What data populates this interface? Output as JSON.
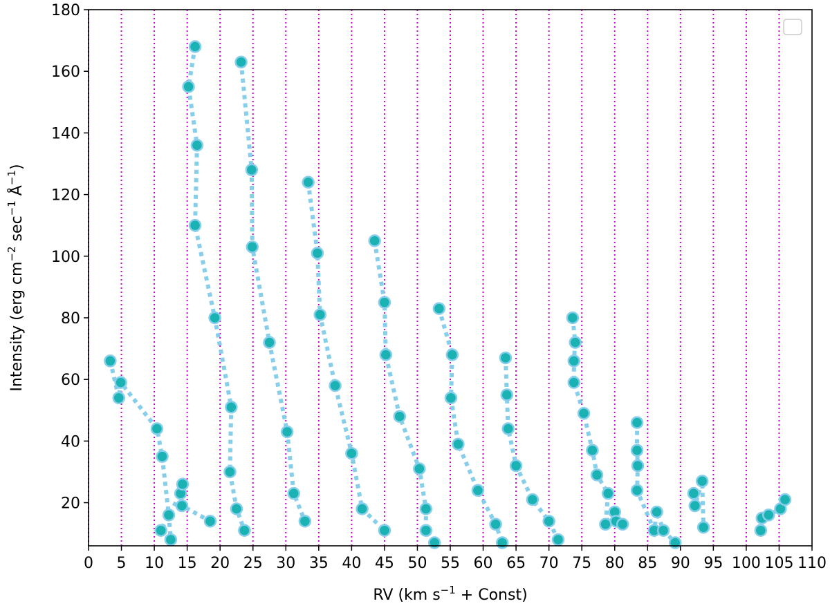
{
  "chart_data": {
    "type": "scatter",
    "xlabel": {
      "pre": "RV (km s",
      "sup": "−1",
      "post": " + Const)"
    },
    "ylabel": {
      "parts": [
        {
          "t": "Intensity (erg cm",
          "sup": false
        },
        {
          "t": "−2",
          "sup": true
        },
        {
          "t": " sec",
          "sup": false
        },
        {
          "t": "−1",
          "sup": true
        },
        {
          "t": " Å",
          "sup": false
        },
        {
          "t": "−1",
          "sup": true
        },
        {
          "t": ")",
          "sup": false
        }
      ]
    },
    "xlim": [
      0,
      110
    ],
    "ylim": [
      6,
      180
    ],
    "x_ticks": [
      0,
      5,
      10,
      15,
      20,
      25,
      30,
      35,
      40,
      45,
      50,
      55,
      60,
      65,
      70,
      75,
      80,
      85,
      90,
      95,
      100,
      105,
      110
    ],
    "x_tick_labels": [
      "0",
      "5",
      "10",
      "15",
      "20",
      "25",
      "30",
      "35",
      "40",
      "45",
      "50",
      "55",
      "60",
      "65",
      "70",
      "75",
      "80",
      "85",
      "90",
      "95",
      "100",
      "105",
      "110"
    ],
    "y_ticks": [
      20,
      40,
      60,
      80,
      100,
      120,
      140,
      160,
      180
    ],
    "y_tick_labels": [
      "20",
      "40",
      "60",
      "80",
      "100",
      "120",
      "140",
      "160",
      "180"
    ],
    "vlines": [
      0,
      5,
      10,
      15,
      20,
      25,
      30,
      35,
      40,
      45,
      50,
      55,
      60,
      65,
      70,
      75,
      80,
      85,
      90,
      95,
      100,
      105
    ],
    "vline_color": "#cc00cc",
    "marker_fill": "#1ab2b2",
    "marker_edge": "#87ceeb",
    "line_color": "#87ceeb",
    "legend": "top-right (empty)",
    "series": [
      {
        "x": [
          3.3,
          4.6,
          4.9,
          10.4,
          11.2,
          12.2,
          12.5,
          11.0,
          14.0,
          14.3,
          14.2,
          18.5
        ],
        "y": [
          66,
          54,
          59,
          44,
          35,
          16,
          8,
          11,
          23,
          26,
          19,
          14
        ]
      },
      {
        "x": [
          16.2,
          15.2,
          16.5,
          16.2,
          19.2,
          21.7,
          21.5,
          22.5,
          23.7
        ],
        "y": [
          168,
          155,
          136,
          110,
          80,
          51,
          30,
          18,
          11
        ]
      },
      {
        "x": [
          23.2,
          24.8,
          24.9,
          27.5,
          30.2,
          31.2,
          32.9
        ],
        "y": [
          163,
          128,
          103,
          72,
          43,
          23,
          14
        ]
      },
      {
        "x": [
          33.4,
          34.8,
          35.2,
          37.5,
          40.0,
          41.6,
          45.0
        ],
        "y": [
          124,
          101,
          81,
          58,
          36,
          18,
          11
        ]
      },
      {
        "x": [
          43.5,
          45.0,
          45.2,
          47.3,
          50.3,
          51.3,
          51.3,
          52.6
        ],
        "y": [
          105,
          85,
          68,
          48,
          31,
          18,
          11,
          7
        ]
      },
      {
        "x": [
          53.3,
          55.3,
          55.1,
          56.2,
          59.2,
          61.9,
          62.9
        ],
        "y": [
          83,
          68,
          54,
          39,
          24,
          13,
          7
        ]
      },
      {
        "x": [
          63.4,
          63.6,
          63.8,
          65.0,
          67.5,
          70.0,
          71.4
        ],
        "y": [
          67,
          55,
          44,
          32,
          21,
          14,
          8
        ]
      },
      {
        "x": [
          73.6,
          74.0,
          73.8,
          73.8,
          75.3,
          76.6,
          77.3,
          79.0,
          78.6,
          80.0,
          80.2,
          81.2
        ],
        "y": [
          80,
          72,
          66,
          59,
          49,
          37,
          29,
          23,
          13,
          17,
          14,
          13
        ]
      },
      {
        "x": [
          83.4,
          83.4,
          83.5,
          83.4,
          86.0,
          86.4,
          87.4,
          89.2
        ],
        "y": [
          46,
          37,
          32,
          24,
          11,
          17,
          11,
          7
        ]
      },
      {
        "x": [
          92.0,
          92.2,
          93.3,
          93.5
        ],
        "y": [
          23,
          19,
          27,
          12
        ]
      },
      {
        "x": [
          102.2,
          102.4,
          103.4,
          105.2,
          105.9
        ],
        "y": [
          11,
          15,
          16,
          18,
          21
        ]
      }
    ]
  }
}
